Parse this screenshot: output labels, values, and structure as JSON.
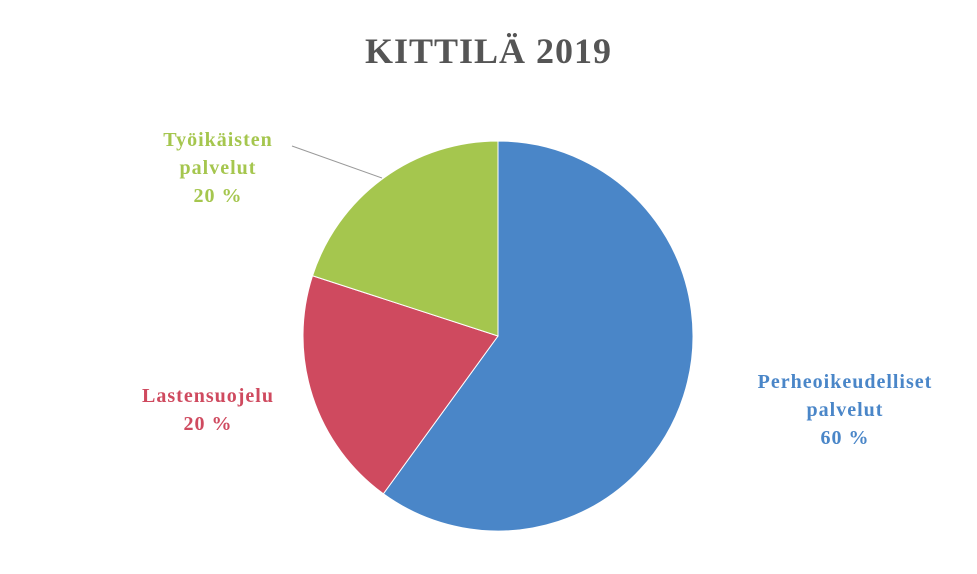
{
  "chart_data": {
    "type": "pie",
    "title": "KITTILÄ 2019",
    "categories": [
      "Perheoikeudelliset palvelut",
      "Lastensuojelu",
      "Työikäisten palvelut"
    ],
    "values": [
      60,
      20,
      20
    ],
    "value_labels": [
      "60 %",
      "20 %",
      "20 %"
    ],
    "colors": [
      "#4a86c8",
      "#cf4a5f",
      "#a5c64e"
    ]
  }
}
